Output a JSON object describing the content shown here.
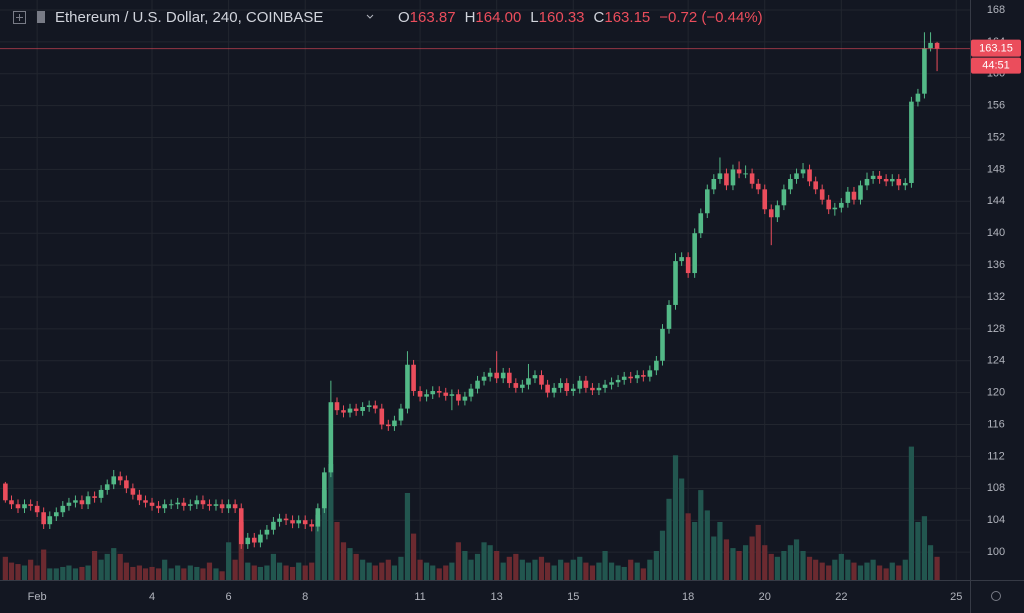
{
  "chart_data": {
    "type": "candlestick",
    "title": "Ethereum / U.S. Dollar, 240, COINBASE",
    "header_ohlc": [
      {
        "key": "O",
        "text": "163.87"
      },
      {
        "key": "H",
        "text": "164.00"
      },
      {
        "key": "L",
        "text": "160.33"
      },
      {
        "key": "C",
        "text": "163.15"
      }
    ],
    "change": "−0.72 (−0.44%)",
    "countdown": "44:51",
    "up_color": "#53b987",
    "down_color": "#eb4d5c",
    "volume_up_color": "#22564f",
    "volume_down_color": "#6b2a30",
    "grid": true,
    "xlim": [
      0.03,
      25.36
    ],
    "xticks": [
      {
        "value": 1,
        "label": "Feb"
      },
      4,
      6,
      8,
      11,
      13,
      15,
      18,
      20,
      22,
      25
    ],
    "ylim": [
      96.5,
      169.25
    ],
    "yticks": [
      100,
      104,
      108,
      112,
      116,
      120,
      124,
      128,
      132,
      136,
      140,
      144,
      148,
      152,
      156,
      160,
      164,
      168
    ],
    "volume_ylim": [
      0,
      400
    ],
    "x": [
      0.17,
      0.33,
      0.5,
      0.67,
      0.83,
      1,
      1.17,
      1.33,
      1.5,
      1.67,
      1.83,
      2,
      2.17,
      2.33,
      2.5,
      2.67,
      2.83,
      3,
      3.17,
      3.33,
      3.5,
      3.67,
      3.83,
      4,
      4.17,
      4.33,
      4.5,
      4.67,
      4.83,
      5,
      5.17,
      5.33,
      5.5,
      5.67,
      5.83,
      6,
      6.17,
      6.33,
      6.5,
      6.67,
      6.83,
      7,
      7.17,
      7.33,
      7.5,
      7.67,
      7.83,
      8,
      8.17,
      8.33,
      8.5,
      8.67,
      8.83,
      9,
      9.17,
      9.33,
      9.5,
      9.67,
      9.83,
      10,
      10.17,
      10.33,
      10.5,
      10.67,
      10.83,
      11,
      11.17,
      11.33,
      11.5,
      11.67,
      11.83,
      12,
      12.17,
      12.33,
      12.5,
      12.67,
      12.83,
      13,
      13.17,
      13.33,
      13.5,
      13.67,
      13.83,
      14,
      14.17,
      14.33,
      14.5,
      14.67,
      14.83,
      15,
      15.17,
      15.33,
      15.5,
      15.67,
      15.83,
      16,
      16.17,
      16.33,
      16.5,
      16.67,
      16.83,
      17,
      17.17,
      17.33,
      17.5,
      17.67,
      17.83,
      18,
      18.17,
      18.33,
      18.5,
      18.67,
      18.83,
      19,
      19.17,
      19.33,
      19.5,
      19.67,
      19.83,
      20,
      20.17,
      20.33,
      20.5,
      20.67,
      20.83,
      21,
      21.17,
      21.33,
      21.5,
      21.67,
      21.83,
      22,
      22.17,
      22.33,
      22.5,
      22.67,
      22.83,
      23,
      23.17,
      23.33,
      23.5,
      23.67,
      23.83,
      24,
      24.17,
      24.33,
      24.5
    ],
    "candles": [
      [
        108.6,
        108.8,
        106.2,
        106.5
      ],
      [
        106.5,
        107.1,
        105.4,
        106
      ],
      [
        106,
        106.6,
        104.9,
        105.5
      ],
      [
        105.5,
        106.6,
        104.9,
        106
      ],
      [
        106,
        106.6,
        105.2,
        105.8
      ],
      [
        105.8,
        106.4,
        104.4,
        105
      ],
      [
        105,
        105.6,
        102.9,
        103.5
      ],
      [
        103.5,
        105.1,
        102.9,
        104.5
      ],
      [
        104.5,
        105.6,
        103.9,
        105
      ],
      [
        105,
        106.4,
        104.4,
        105.8
      ],
      [
        105.8,
        106.8,
        105.2,
        106.2
      ],
      [
        106.2,
        107.1,
        105.6,
        106.5
      ],
      [
        106.5,
        107.1,
        105.4,
        106
      ],
      [
        106,
        107.6,
        105.4,
        107
      ],
      [
        107,
        107.6,
        106.2,
        106.8
      ],
      [
        106.8,
        108.4,
        106.2,
        107.8
      ],
      [
        107.8,
        109.1,
        107.2,
        108.5
      ],
      [
        108.5,
        110.3,
        107.9,
        109.5
      ],
      [
        109.5,
        110.1,
        108.4,
        109
      ],
      [
        109,
        109.6,
        107.4,
        108
      ],
      [
        108,
        108.6,
        106.6,
        107.2
      ],
      [
        107.2,
        107.8,
        105.9,
        106.5
      ],
      [
        106.5,
        107.1,
        105.6,
        106.2
      ],
      [
        106.2,
        106.8,
        105.2,
        105.8
      ],
      [
        105.8,
        106.4,
        104.9,
        105.5
      ],
      [
        105.5,
        106.6,
        104.9,
        106
      ],
      [
        106,
        106.6,
        105.4,
        106
      ],
      [
        106,
        106.8,
        105.4,
        106.2
      ],
      [
        106.2,
        106.8,
        105.2,
        105.8
      ],
      [
        105.8,
        106.6,
        105.2,
        106
      ],
      [
        106,
        107.1,
        105.4,
        106.5
      ],
      [
        106.5,
        107.1,
        105.4,
        106
      ],
      [
        106,
        106.6,
        105.2,
        105.8
      ],
      [
        105.8,
        106.6,
        105.2,
        106
      ],
      [
        106,
        106.6,
        104.9,
        105.5
      ],
      [
        105.5,
        106.6,
        104.9,
        106
      ],
      [
        106,
        106.6,
        104.9,
        105.5
      ],
      [
        105.5,
        106.1,
        100.4,
        101
      ],
      [
        101,
        102.4,
        100.4,
        101.8
      ],
      [
        101.8,
        102.4,
        100.6,
        101.2
      ],
      [
        101.2,
        102.8,
        100.6,
        102.2
      ],
      [
        102.2,
        103.4,
        101.6,
        102.8
      ],
      [
        102.8,
        104.4,
        102.2,
        103.8
      ],
      [
        103.8,
        104.8,
        103.2,
        104.2
      ],
      [
        104.2,
        104.8,
        103.4,
        104
      ],
      [
        104,
        104.6,
        103,
        103.6
      ],
      [
        103.6,
        104.6,
        103,
        104
      ],
      [
        104,
        104.6,
        102.9,
        103.5
      ],
      [
        103.5,
        104.1,
        102.6,
        103.2
      ],
      [
        103.2,
        106.1,
        102.6,
        105.5
      ],
      [
        105.5,
        110.6,
        104.9,
        110
      ],
      [
        110,
        121.5,
        109.4,
        118.8
      ],
      [
        118.8,
        119.4,
        117.2,
        117.8
      ],
      [
        117.8,
        118.4,
        116.9,
        117.5
      ],
      [
        117.5,
        118.6,
        116.9,
        118
      ],
      [
        118,
        118.6,
        117.1,
        117.7
      ],
      [
        117.7,
        118.8,
        117.1,
        118.2
      ],
      [
        118.2,
        119,
        117.6,
        118.4
      ],
      [
        118.4,
        119,
        117.4,
        118
      ],
      [
        118,
        118.6,
        115.4,
        116
      ],
      [
        116,
        116.6,
        115.2,
        115.8
      ],
      [
        115.8,
        117.1,
        115.2,
        116.5
      ],
      [
        116.5,
        118.6,
        115.9,
        118
      ],
      [
        118,
        125.2,
        117.4,
        123.5
      ],
      [
        123.5,
        124.1,
        119.6,
        120.2
      ],
      [
        120.2,
        120.8,
        118.9,
        119.5
      ],
      [
        119.5,
        120.4,
        118.9,
        119.8
      ],
      [
        119.8,
        120.8,
        119.2,
        120.2
      ],
      [
        120.2,
        120.8,
        119.4,
        120
      ],
      [
        120,
        120.6,
        119,
        119.6
      ],
      [
        119.6,
        120.4,
        117.8,
        119.8
      ],
      [
        119.8,
        120.4,
        118.4,
        119
      ],
      [
        119,
        120.1,
        118.4,
        119.5
      ],
      [
        119.5,
        121.1,
        118.9,
        120.5
      ],
      [
        120.5,
        122.1,
        119.9,
        121.5
      ],
      [
        121.5,
        122.6,
        120.9,
        122
      ],
      [
        122,
        123.1,
        121.4,
        122.5
      ],
      [
        122.5,
        125.2,
        121.2,
        121.8
      ],
      [
        121.8,
        123.1,
        121.2,
        122.5
      ],
      [
        122.5,
        123.1,
        120.6,
        121.2
      ],
      [
        121.2,
        121.8,
        120,
        120.6
      ],
      [
        120.6,
        121.6,
        120,
        121
      ],
      [
        121,
        123.6,
        120.4,
        121.8
      ],
      [
        121.8,
        122.8,
        121.2,
        122.2
      ],
      [
        122.2,
        122.8,
        120.4,
        121
      ],
      [
        121,
        121.6,
        119.4,
        120
      ],
      [
        120,
        121.2,
        119.4,
        120.6
      ],
      [
        120.6,
        121.8,
        120,
        121.2
      ],
      [
        121.2,
        121.8,
        119.6,
        120.2
      ],
      [
        120.2,
        121.1,
        119.6,
        120.5
      ],
      [
        120.5,
        122.1,
        119.9,
        121.5
      ],
      [
        121.5,
        122.1,
        120,
        120.6
      ],
      [
        120.6,
        121.2,
        119.7,
        120.3
      ],
      [
        120.3,
        121.2,
        119.7,
        120.6
      ],
      [
        120.6,
        121.6,
        120,
        121
      ],
      [
        121,
        121.9,
        120.4,
        121.3
      ],
      [
        121.3,
        122.2,
        120.7,
        121.6
      ],
      [
        121.6,
        122.6,
        121,
        122
      ],
      [
        122,
        122.6,
        121.2,
        121.8
      ],
      [
        121.8,
        122.8,
        121.2,
        122.2
      ],
      [
        122.2,
        122.8,
        121.4,
        122
      ],
      [
        122,
        123.4,
        121.4,
        122.8
      ],
      [
        122.8,
        124.6,
        122.2,
        124
      ],
      [
        124,
        128.6,
        123.4,
        128
      ],
      [
        128,
        131.6,
        127.4,
        131
      ],
      [
        131,
        137.5,
        130.4,
        136.5
      ],
      [
        136.5,
        137.6,
        135.9,
        137
      ],
      [
        137,
        137.6,
        134.4,
        135
      ],
      [
        135,
        140.6,
        134.4,
        140
      ],
      [
        140,
        143.1,
        139.4,
        142.5
      ],
      [
        142.5,
        146.1,
        141.9,
        145.5
      ],
      [
        145.5,
        147.4,
        144.9,
        146.8
      ],
      [
        146.8,
        149.5,
        146.2,
        147.5
      ],
      [
        147.5,
        148.1,
        145.4,
        146
      ],
      [
        146,
        148.6,
        145.4,
        148
      ],
      [
        148,
        149,
        146.9,
        147.5
      ],
      [
        147.5,
        148.5,
        146.9,
        147.5
      ],
      [
        147.5,
        148.1,
        145.6,
        146.2
      ],
      [
        146.2,
        146.8,
        144.9,
        145.5
      ],
      [
        145.5,
        146.1,
        142.4,
        143
      ],
      [
        143,
        143.6,
        138.5,
        142
      ],
      [
        142,
        144.1,
        141.4,
        143.5
      ],
      [
        143.5,
        146.1,
        142.9,
        145.5
      ],
      [
        145.5,
        147.4,
        144.9,
        146.8
      ],
      [
        146.8,
        148.1,
        146.2,
        147.5
      ],
      [
        147.5,
        148.8,
        146.9,
        148
      ],
      [
        148,
        148.6,
        145.9,
        146.5
      ],
      [
        146.5,
        147.1,
        144.9,
        145.5
      ],
      [
        145.5,
        146.1,
        143.6,
        144.2
      ],
      [
        144.2,
        144.8,
        142.4,
        143
      ],
      [
        143,
        143.8,
        142.2,
        143.2
      ],
      [
        143.2,
        144.4,
        142.6,
        143.8
      ],
      [
        143.8,
        145.8,
        143.2,
        145.2
      ],
      [
        145.2,
        145.8,
        143.6,
        144.2
      ],
      [
        144.2,
        146.6,
        143.6,
        146
      ],
      [
        146,
        147.6,
        145.4,
        146.8
      ],
      [
        146.8,
        147.8,
        146.2,
        147.2
      ],
      [
        147.2,
        147.8,
        146.2,
        146.8
      ],
      [
        146.8,
        147.4,
        145.9,
        146.5
      ],
      [
        146.5,
        147.4,
        145.9,
        146.8
      ],
      [
        146.8,
        147.4,
        145.4,
        146
      ],
      [
        146,
        146.9,
        145.4,
        146.3
      ],
      [
        146.3,
        157.1,
        145.7,
        156.5
      ],
      [
        156.5,
        158.1,
        155.9,
        157.5
      ],
      [
        157.5,
        165.2,
        156.9,
        163.2
      ],
      [
        163.2,
        165.2,
        162.8,
        163.87
      ],
      [
        163.87,
        164,
        160.33,
        163.15
      ]
    ],
    "volume": [
      16,
      12,
      11,
      10,
      14,
      10,
      21,
      8,
      8,
      9,
      10,
      8,
      9,
      10,
      20,
      14,
      18,
      22,
      18,
      12,
      9,
      10,
      8,
      9,
      8,
      14,
      8,
      10,
      8,
      10,
      9,
      8,
      12,
      8,
      6,
      26,
      14,
      40,
      12,
      10,
      9,
      10,
      18,
      12,
      10,
      9,
      12,
      10,
      12,
      45,
      62,
      80,
      40,
      26,
      22,
      18,
      14,
      12,
      10,
      12,
      14,
      10,
      16,
      60,
      32,
      14,
      12,
      10,
      8,
      10,
      12,
      26,
      20,
      14,
      18,
      26,
      24,
      20,
      12,
      16,
      18,
      14,
      12,
      14,
      16,
      12,
      10,
      14,
      12,
      14,
      16,
      12,
      10,
      12,
      20,
      12,
      10,
      9,
      14,
      12,
      8,
      14,
      20,
      34,
      56,
      86,
      70,
      46,
      40,
      62,
      48,
      30,
      40,
      28,
      22,
      20,
      24,
      30,
      38,
      24,
      18,
      16,
      20,
      24,
      28,
      20,
      16,
      14,
      12,
      10,
      14,
      18,
      14,
      12,
      10,
      12,
      14,
      10,
      8,
      12,
      10,
      14,
      92,
      40,
      44,
      24,
      16
    ]
  }
}
